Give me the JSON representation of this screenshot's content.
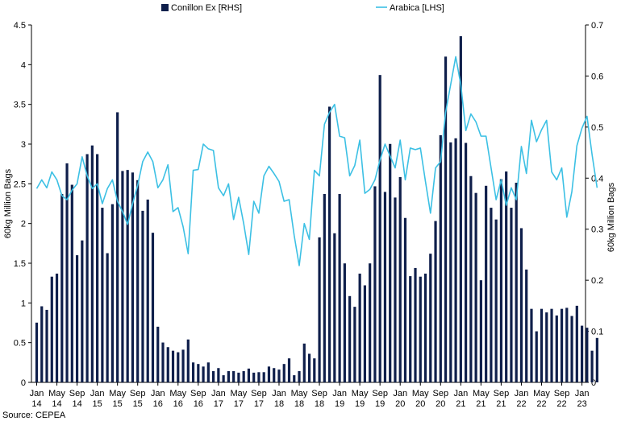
{
  "chart_data": {
    "type": "bar+line",
    "source": "Source: CEPEA",
    "ylabel_left": "60kg Million Bags",
    "ylabel_right": "60kg Million Bags",
    "y_left_ticks": [
      "0",
      "0.5",
      "1",
      "1.5",
      "2",
      "2.5",
      "3",
      "3.5",
      "4",
      "4.5"
    ],
    "y_left_lim": [
      0,
      4.5
    ],
    "y_right_ticks": [
      "0",
      "0.1",
      "0.2",
      "0.3",
      "0.4",
      "0.5",
      "0.6",
      "0.7"
    ],
    "y_right_lim": [
      0,
      0.7
    ],
    "x_ticks": [
      {
        "month": "Jan",
        "year": "14"
      },
      {
        "month": "May",
        "year": "14"
      },
      {
        "month": "Sep",
        "year": "14"
      },
      {
        "month": "Jan",
        "year": "15"
      },
      {
        "month": "May",
        "year": "15"
      },
      {
        "month": "Sep",
        "year": "15"
      },
      {
        "month": "Jan",
        "year": "16"
      },
      {
        "month": "May",
        "year": "16"
      },
      {
        "month": "Sep",
        "year": "16"
      },
      {
        "month": "Jan",
        "year": "17"
      },
      {
        "month": "May",
        "year": "17"
      },
      {
        "month": "Sep",
        "year": "17"
      },
      {
        "month": "Jan",
        "year": "18"
      },
      {
        "month": "May",
        "year": "18"
      },
      {
        "month": "Sep",
        "year": "18"
      },
      {
        "month": "Jan",
        "year": "19"
      },
      {
        "month": "May",
        "year": "19"
      },
      {
        "month": "Sep",
        "year": "19"
      },
      {
        "month": "Jan",
        "year": "20"
      },
      {
        "month": "May",
        "year": "20"
      },
      {
        "month": "Sep",
        "year": "20"
      },
      {
        "month": "Jan",
        "year": "21"
      },
      {
        "month": "May",
        "year": "21"
      },
      {
        "month": "Sep",
        "year": "21"
      },
      {
        "month": "Jan",
        "year": "22"
      },
      {
        "month": "May",
        "year": "22"
      },
      {
        "month": "Sep",
        "year": "22"
      },
      {
        "month": "Jan",
        "year": "23"
      }
    ],
    "x_start": "2014-01",
    "x_end": "2023-01",
    "series": [
      {
        "name": "Conillon Ex [RHS]",
        "kind": "bar",
        "axis": "right",
        "color": "#0f1f4b",
        "values": [
          0.117,
          0.149,
          0.142,
          0.207,
          0.213,
          0.369,
          0.429,
          0.387,
          0.249,
          0.278,
          0.447,
          0.464,
          0.447,
          0.342,
          0.253,
          0.349,
          0.529,
          0.414,
          0.416,
          0.411,
          0.396,
          0.336,
          0.358,
          0.293,
          0.109,
          0.078,
          0.069,
          0.062,
          0.059,
          0.064,
          0.084,
          0.039,
          0.036,
          0.031,
          0.039,
          0.022,
          0.028,
          0.014,
          0.022,
          0.022,
          0.019,
          0.022,
          0.027,
          0.019,
          0.02,
          0.02,
          0.031,
          0.028,
          0.025,
          0.036,
          0.047,
          0.014,
          0.022,
          0.076,
          0.056,
          0.047,
          0.284,
          0.369,
          0.54,
          0.292,
          0.369,
          0.233,
          0.169,
          0.148,
          0.213,
          0.19,
          0.233,
          0.384,
          0.602,
          0.373,
          0.467,
          0.362,
          0.402,
          0.322,
          0.208,
          0.224,
          0.207,
          0.213,
          0.252,
          0.316,
          0.484,
          0.638,
          0.47,
          0.478,
          0.678,
          0.469,
          0.404,
          0.371,
          0.2,
          0.385,
          0.342,
          0.319,
          0.398,
          0.413,
          0.342,
          0.391,
          0.302,
          0.221,
          0.144,
          0.1,
          0.144,
          0.137,
          0.144,
          0.131,
          0.144,
          0.146,
          0.13,
          0.15,
          0.111,
          0.107,
          0.062,
          0.087
        ]
      },
      {
        "name": "Arabica [LHS]",
        "kind": "line",
        "axis": "left",
        "color": "#3cc0e4",
        "values": [
          2.44,
          2.55,
          2.45,
          2.65,
          2.55,
          2.35,
          2.3,
          2.42,
          2.5,
          2.84,
          2.6,
          2.44,
          2.5,
          2.25,
          2.44,
          2.55,
          2.28,
          2.15,
          1.99,
          2.25,
          2.48,
          2.78,
          2.9,
          2.78,
          2.45,
          2.55,
          2.74,
          2.15,
          2.2,
          1.96,
          1.62,
          2.67,
          2.68,
          3.0,
          2.94,
          2.92,
          2.45,
          2.35,
          2.5,
          2.05,
          2.33,
          2.0,
          1.61,
          2.28,
          2.13,
          2.6,
          2.72,
          2.63,
          2.53,
          2.28,
          2.3,
          1.85,
          1.47,
          2.0,
          1.8,
          2.67,
          2.6,
          3.25,
          3.4,
          3.5,
          3.1,
          3.08,
          2.6,
          2.73,
          3.05,
          2.38,
          2.43,
          2.55,
          2.8,
          3.0,
          2.85,
          2.7,
          3.05,
          2.55,
          2.95,
          2.93,
          2.95,
          2.53,
          2.13,
          2.7,
          2.78,
          3.4,
          3.75,
          4.1,
          3.75,
          3.17,
          3.38,
          3.28,
          3.1,
          3.1,
          2.7,
          2.3,
          2.55,
          2.23,
          2.45,
          2.3,
          2.97,
          2.63,
          3.3,
          3.03,
          3.18,
          3.3,
          2.65,
          2.55,
          2.7,
          2.08,
          2.4,
          2.98,
          3.2,
          3.35,
          2.87,
          2.45
        ]
      }
    ],
    "legend_position": "top",
    "grid": false
  }
}
